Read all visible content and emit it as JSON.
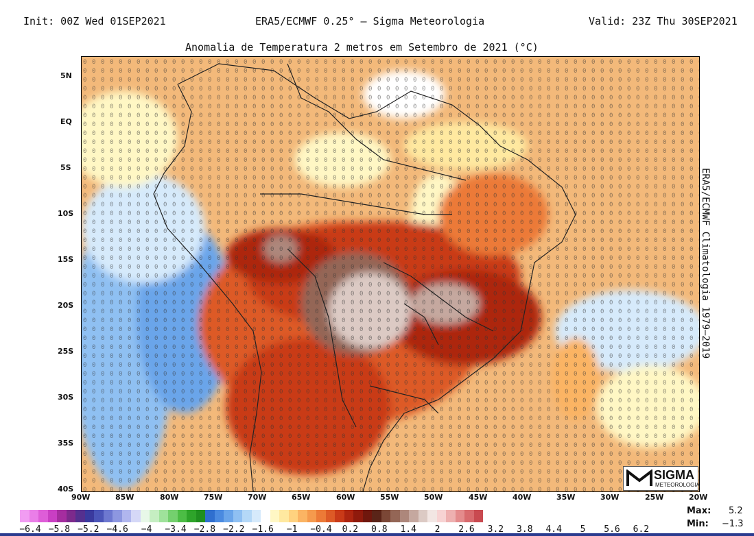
{
  "header": {
    "init": "Init: 00Z Wed 01SEP2021",
    "center": "ERA5/ECMWF 0.25° – Sigma Meteorologia",
    "valid": "Valid: 23Z Thu 30SEP2021"
  },
  "map": {
    "title": "Anomalia de Temperatura 2 metros em Setembro de 2021 (°C)",
    "side_text": "ERA5/ECMWF Climatologia 1979–2019",
    "lat_labels": [
      "5N",
      "EQ",
      "5S",
      "10S",
      "15S",
      "20S",
      "25S",
      "30S",
      "35S",
      "40S"
    ],
    "lon_labels": [
      "90W",
      "85W",
      "80W",
      "75W",
      "70W",
      "65W",
      "60W",
      "55W",
      "50W",
      "45W",
      "40W",
      "35W",
      "30W",
      "25W",
      "20W"
    ],
    "ocean_color": "#f3b97a",
    "land_outline_color": "#222222"
  },
  "logo": {
    "line1": "SIGMA",
    "line2": "METEOROLOGIA"
  },
  "colorbar": {
    "colors": [
      "#f19cf2",
      "#ea7ee8",
      "#de5dd8",
      "#c93fc3",
      "#a52d9f",
      "#7d2a8c",
      "#55308f",
      "#3a3a9e",
      "#4b55b8",
      "#6d78d0",
      "#8d97e0",
      "#b0b6ee",
      "#d5d8f7",
      "#e8f8e8",
      "#c5eec2",
      "#9fe29b",
      "#74d06e",
      "#4cbd45",
      "#2ea42a",
      "#1f8f1f",
      "#2f6fcf",
      "#4a8ae0",
      "#6aa5ea",
      "#8fc0f2",
      "#b4d8f7",
      "#d6eafb",
      "#ffffff",
      "#fff7c4",
      "#ffe9a0",
      "#ffd27f",
      "#fbb463",
      "#f59a4d",
      "#ec7a37",
      "#dd5a26",
      "#c93a18",
      "#ad2510",
      "#8f1a0c",
      "#6f170d",
      "#5a2418",
      "#7b4736",
      "#946656",
      "#ad877b",
      "#c5a89f",
      "#dccac4",
      "#f2e6e3",
      "#f7d3d3",
      "#eeb0b0",
      "#e48b8c",
      "#d86a6d",
      "#c94a50"
    ],
    "tick_labels": [
      "−6.4",
      "−5.8",
      "−5.2",
      "−4.6",
      "−4",
      "−3.4",
      "−2.8",
      "−2.2",
      "−1.6",
      "−1",
      "−0.4",
      "0.2",
      "0.8",
      "1.4",
      "2",
      "2.6",
      "3.2",
      "3.8",
      "4.4",
      "5",
      "5.6",
      "6.2"
    ]
  },
  "stats": {
    "max_label": "Max:",
    "max_value": "5.2",
    "min_label": "Min:",
    "min_value": "−1.3"
  }
}
